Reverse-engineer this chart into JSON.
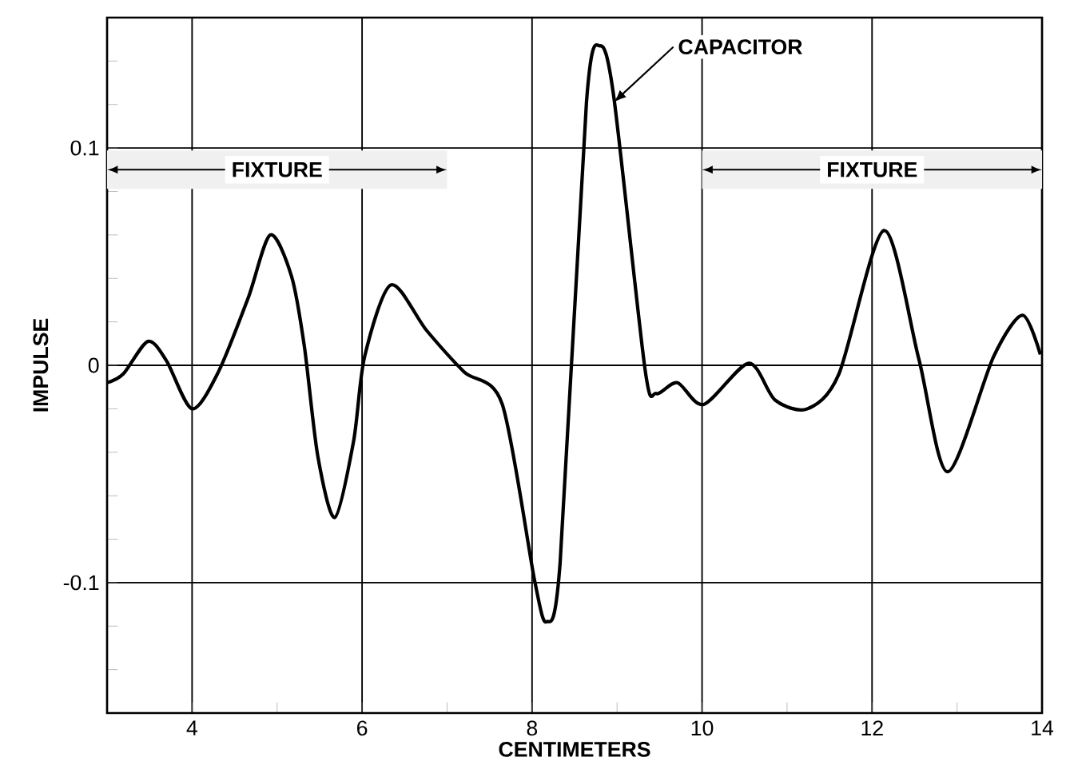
{
  "chart_data": {
    "type": "line",
    "xlabel": "CENTIMETERS",
    "ylabel": "IMPULSE",
    "xlim": [
      3,
      14
    ],
    "ylim": [
      -0.16,
      0.16
    ],
    "xticks": [
      4,
      {
        "value": 5,
        "label": null
      },
      6,
      {
        "value": 7,
        "label": null
      },
      8,
      {
        "value": 9,
        "label": null
      },
      10,
      {
        "value": 11,
        "label": null
      },
      12,
      {
        "value": 13,
        "label": null
      },
      14
    ],
    "yticks": [
      {
        "value": -0.14,
        "label": null
      },
      {
        "value": -0.12,
        "label": null
      },
      -0.1,
      {
        "value": -0.08,
        "label": null
      },
      {
        "value": -0.06,
        "label": null
      },
      {
        "value": -0.04,
        "label": null
      },
      {
        "value": -0.02,
        "label": null
      },
      0,
      {
        "value": 0.02,
        "label": null
      },
      {
        "value": 0.04,
        "label": null
      },
      {
        "value": 0.06,
        "label": null
      },
      {
        "value": 0.08,
        "label": null
      },
      0.1,
      {
        "value": 0.12,
        "label": null
      },
      {
        "value": 0.14,
        "label": null
      }
    ],
    "grid": true,
    "marker": "none",
    "line_style": "solid",
    "series": [
      {
        "color": "#000000",
        "x": [
          3.0,
          3.19,
          3.48,
          3.7,
          4.0,
          4.31,
          4.66,
          4.92,
          5.17,
          5.32,
          5.48,
          5.68,
          5.9,
          6.03,
          6.34,
          6.76,
          7.2,
          7.65,
          8.03,
          8.17,
          8.33,
          8.64,
          8.8,
          8.96,
          9.33,
          9.46,
          9.71,
          10.02,
          10.55,
          10.86,
          11.24,
          11.61,
          12.14,
          12.55,
          12.89,
          13.43,
          13.77,
          13.98
        ],
        "values": [
          -0.008,
          -0.004,
          0.011,
          0.002,
          -0.02,
          -0.003,
          0.031,
          0.06,
          0.041,
          0.009,
          -0.042,
          -0.07,
          -0.035,
          0.004,
          0.037,
          0.016,
          -0.003,
          -0.018,
          -0.099,
          -0.118,
          -0.091,
          0.121,
          0.147,
          0.124,
          -0.002,
          -0.013,
          -0.008,
          -0.018,
          0.001,
          -0.016,
          -0.02,
          -0.004,
          0.062,
          0.003,
          -0.049,
          0.004,
          0.023,
          0.005
        ]
      }
    ],
    "bands": [
      {
        "axis": "x",
        "from": 3,
        "to": 7,
        "label": "FIXTURE"
      },
      {
        "axis": "x",
        "from": 10,
        "to": 14,
        "label": "FIXTURE"
      }
    ],
    "annotations": [
      {
        "text": "CAPACITOR",
        "x": 8.96,
        "y": 0.121
      }
    ]
  }
}
